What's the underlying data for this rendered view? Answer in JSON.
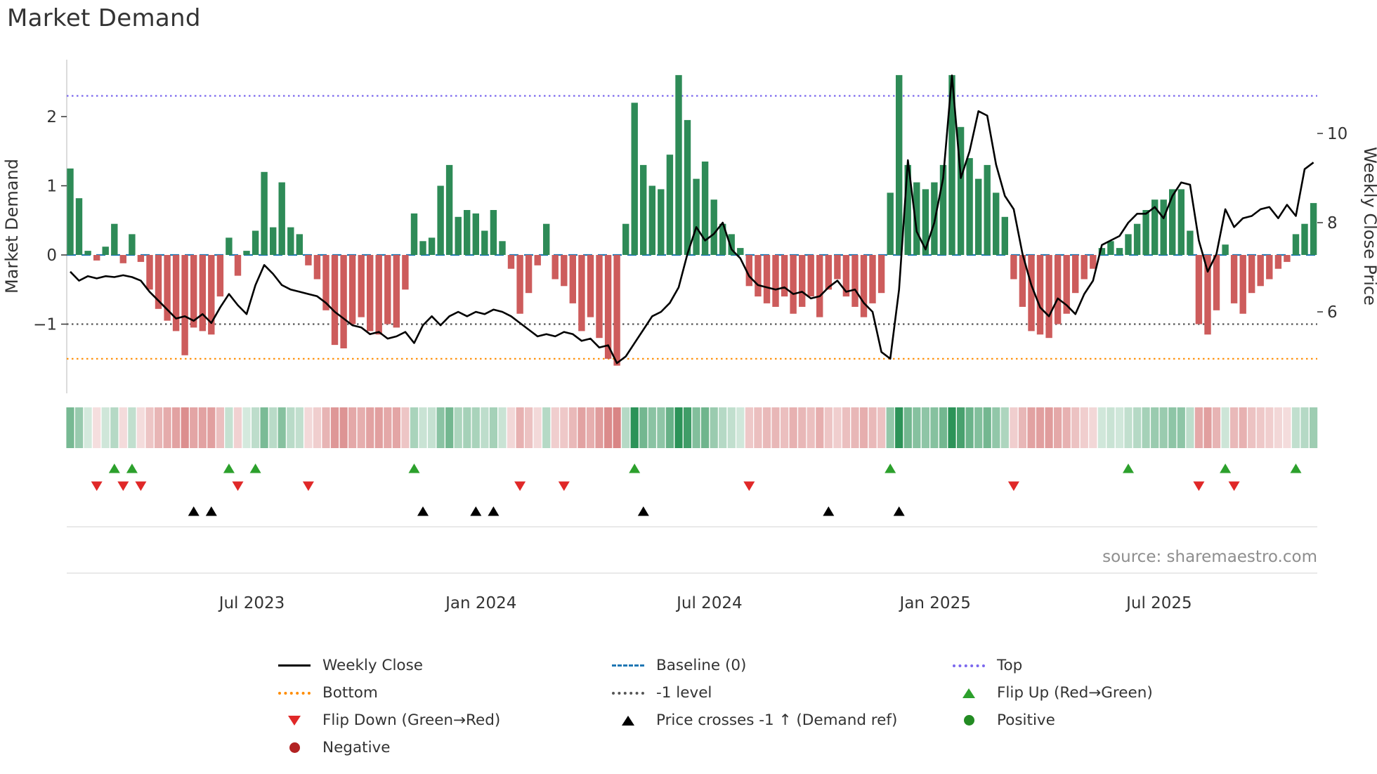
{
  "title": "Market Demand",
  "source": "source: sharemaestro.com",
  "axes": {
    "left_label": "Market Demand",
    "right_label": "Weekly Close Price",
    "left_ticks": [
      "2",
      "1",
      "0",
      "−1"
    ],
    "left_tick_values": [
      2,
      1,
      0,
      -1
    ],
    "right_ticks": [
      "10",
      "8",
      "6"
    ],
    "right_tick_values": [
      10,
      8,
      6
    ]
  },
  "colors": {
    "bar_positive": "#2e8b57",
    "bar_negative": "#cd5c5c",
    "price_line": "#000000",
    "baseline": "#1f77b4",
    "top_line": "#7b68ee",
    "bottom_line": "#ff8c00",
    "minus1_line": "#555555",
    "flip_up": "#2ca02c",
    "flip_down": "#e02828",
    "price_cross": "#000000",
    "positive_dot": "#228b22",
    "negative_dot": "#b22222"
  },
  "chart_data": {
    "type": "bar+line",
    "title": "Market Demand",
    "n_points": 142,
    "x_unit": "weeks",
    "x_ticks": [
      {
        "label": "Jul 2023",
        "week": 20.6
      },
      {
        "label": "Jan 2024",
        "week": 46.6
      },
      {
        "label": "Jul 2024",
        "week": 72.5
      },
      {
        "label": "Jan 2025",
        "week": 98.1
      },
      {
        "label": "Jul 2025",
        "week": 123.5
      }
    ],
    "left_axis": {
      "label": "Market Demand",
      "ticks": [
        2,
        1,
        0,
        -1
      ],
      "range": [
        -2.0,
        2.82
      ]
    },
    "right_axis": {
      "label": "Weekly Close Price",
      "ticks": [
        10,
        8,
        6
      ],
      "range": [
        4.17,
        11.65
      ]
    },
    "reference_lines": [
      {
        "name": "Top",
        "value": 2.3,
        "style": "dotted",
        "color": "#7b68ee"
      },
      {
        "name": "Baseline (0)",
        "value": 0,
        "style": "dashed",
        "color": "#1f77b4"
      },
      {
        "name": "-1 level",
        "value": -1,
        "style": "dotted",
        "color": "#555555"
      },
      {
        "name": "Bottom",
        "value": -1.5,
        "style": "dotted",
        "color": "#ff8c00"
      }
    ],
    "series": [
      {
        "name": "Market Demand",
        "type": "bar",
        "axis": "left",
        "values": [
          1.25,
          0.82,
          0.06,
          -0.08,
          0.12,
          0.45,
          -0.12,
          0.3,
          -0.1,
          -0.5,
          -0.78,
          -0.95,
          -1.1,
          -1.45,
          -1.05,
          -1.1,
          -1.15,
          -0.6,
          0.25,
          -0.3,
          0.06,
          0.35,
          1.2,
          0.4,
          1.05,
          0.4,
          0.3,
          -0.15,
          -0.35,
          -0.8,
          -1.3,
          -1.35,
          -1.0,
          -0.9,
          -1.1,
          -1.15,
          -1.0,
          -1.05,
          -0.5,
          0.6,
          0.2,
          0.25,
          1.0,
          1.3,
          0.55,
          0.65,
          0.6,
          0.35,
          0.65,
          0.2,
          -0.2,
          -0.85,
          -0.55,
          -0.15,
          0.45,
          -0.35,
          -0.45,
          -0.7,
          -1.1,
          -0.9,
          -1.2,
          -1.5,
          -1.6,
          0.45,
          2.2,
          1.3,
          1.0,
          0.95,
          1.45,
          2.6,
          1.95,
          1.1,
          1.35,
          0.8,
          0.45,
          0.3,
          0.1,
          -0.45,
          -0.6,
          -0.7,
          -0.75,
          -0.6,
          -0.85,
          -0.75,
          -0.6,
          -0.9,
          -0.5,
          -0.35,
          -0.6,
          -0.75,
          -0.9,
          -0.7,
          -0.55,
          0.9,
          2.6,
          1.3,
          1.05,
          0.95,
          1.05,
          1.3,
          2.6,
          1.85,
          1.4,
          1.1,
          1.3,
          0.9,
          0.55,
          -0.35,
          -0.75,
          -1.1,
          -1.15,
          -1.2,
          -1.0,
          -0.85,
          -0.55,
          -0.35,
          -0.2,
          0.1,
          0.2,
          0.1,
          0.3,
          0.45,
          0.65,
          0.8,
          0.8,
          0.95,
          0.95,
          0.35,
          -1.0,
          -1.15,
          -0.8,
          0.15,
          -0.7,
          -0.85,
          -0.55,
          -0.45,
          -0.35,
          -0.2,
          -0.1,
          0.3,
          0.45,
          0.75
        ]
      },
      {
        "name": "Weekly Close",
        "type": "line",
        "axis": "right",
        "values": [
          6.9,
          6.7,
          6.8,
          6.75,
          6.8,
          6.78,
          6.82,
          6.78,
          6.7,
          6.45,
          6.25,
          6.05,
          5.85,
          5.9,
          5.8,
          5.95,
          5.75,
          6.1,
          6.4,
          6.15,
          5.95,
          6.6,
          7.05,
          6.85,
          6.6,
          6.5,
          6.45,
          6.4,
          6.35,
          6.2,
          6.0,
          5.85,
          5.7,
          5.65,
          5.5,
          5.55,
          5.4,
          5.45,
          5.55,
          5.3,
          5.7,
          5.9,
          5.7,
          5.9,
          6.0,
          5.9,
          6.0,
          5.95,
          6.05,
          6.0,
          5.9,
          5.75,
          5.6,
          5.45,
          5.5,
          5.45,
          5.55,
          5.5,
          5.35,
          5.4,
          5.2,
          5.25,
          4.85,
          5.0,
          5.3,
          5.6,
          5.9,
          6.0,
          6.2,
          6.55,
          7.3,
          7.9,
          7.6,
          7.75,
          8.0,
          7.4,
          7.2,
          6.8,
          6.6,
          6.55,
          6.5,
          6.55,
          6.4,
          6.45,
          6.3,
          6.35,
          6.55,
          6.7,
          6.45,
          6.5,
          6.2,
          6.0,
          5.1,
          4.95,
          6.5,
          9.4,
          7.8,
          7.4,
          8.0,
          9.0,
          11.3,
          9.0,
          9.6,
          10.5,
          10.4,
          9.3,
          8.6,
          8.3,
          7.3,
          6.6,
          6.1,
          5.9,
          6.3,
          6.15,
          5.95,
          6.4,
          6.7,
          7.5,
          7.6,
          7.7,
          8.0,
          8.2,
          8.2,
          8.35,
          8.1,
          8.6,
          8.9,
          8.85,
          7.6,
          6.9,
          7.3,
          8.3,
          7.9,
          8.1,
          8.15,
          8.3,
          8.35,
          8.1,
          8.4,
          8.15,
          9.2,
          9.35
        ]
      }
    ],
    "markers": {
      "flip_up_weeks": [
        5,
        7,
        18,
        21,
        39,
        64,
        93,
        120,
        131,
        139
      ],
      "flip_down_weeks": [
        3,
        6,
        8,
        19,
        27,
        51,
        56,
        77,
        107,
        128,
        132
      ],
      "price_cross_weeks": [
        14,
        16,
        40,
        46,
        48,
        65,
        86,
        94
      ]
    },
    "heatmap_note": "strip of weekly cells shaded green for positive demand, red for negative, intensity proportional to magnitude"
  },
  "legend": {
    "columns": [
      {
        "items": [
          {
            "label": "Weekly Close"
          },
          {
            "label": "Bottom"
          },
          {
            "label": "Flip Down (Green→Red)"
          },
          {
            "label": "Negative"
          }
        ]
      },
      {
        "items": [
          {
            "label": "Baseline (0)"
          },
          {
            "label": "-1 level"
          },
          {
            "label": "Price crosses -1 ↑ (Demand ref)"
          }
        ]
      },
      {
        "items": [
          {
            "label": "Top"
          },
          {
            "label": "Flip Up (Red→Green)"
          },
          {
            "label": "Positive"
          }
        ]
      }
    ]
  }
}
